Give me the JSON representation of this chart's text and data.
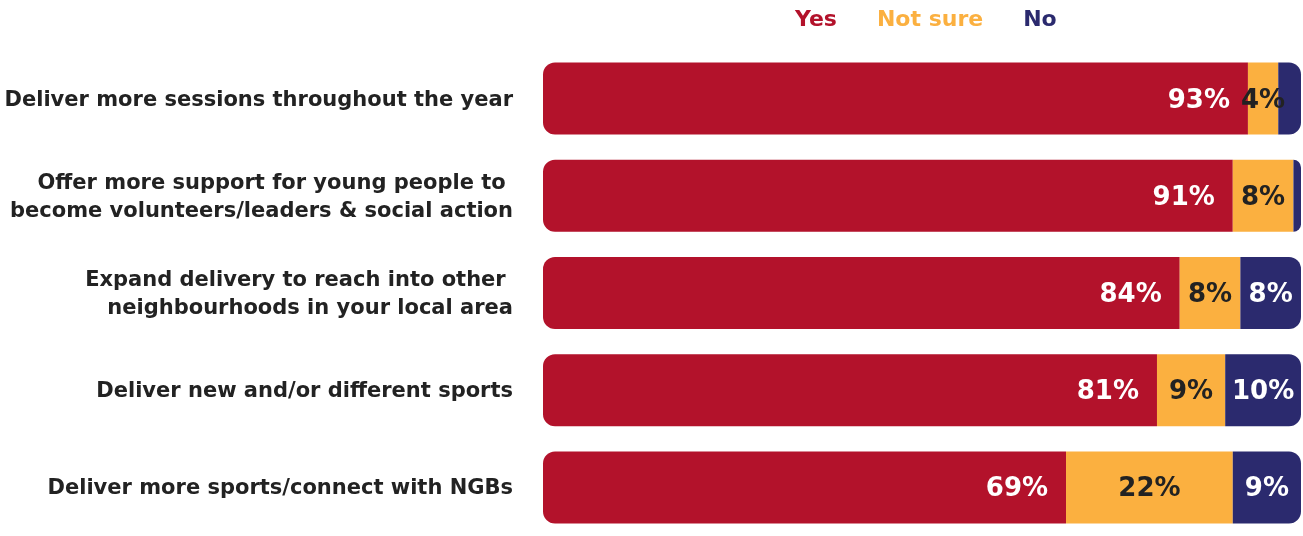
{
  "chart_data": {
    "type": "bar",
    "orientation": "horizontal",
    "stacked": true,
    "legend": "top",
    "categories": [
      "Deliver more sessions throughout the year",
      "Offer more support for young people to become volunteers/leaders & social action",
      "Expand delivery to reach into other neighbourhoods in your local area",
      "Deliver new and/or different sports",
      "Deliver more sports/connect with NGBs"
    ],
    "series": [
      {
        "name": "Yes",
        "color": "#b3122b",
        "values": [
          93,
          91,
          84,
          81,
          69
        ],
        "value_labels": [
          "93%",
          "91%",
          "84%",
          "81%",
          "69%"
        ]
      },
      {
        "name": "Not sure",
        "color": "#fbb040",
        "values": [
          4,
          8,
          8,
          9,
          22
        ],
        "value_labels": [
          "4%",
          "8%",
          "8%",
          "9%",
          "22%"
        ]
      },
      {
        "name": "No",
        "color": "#2b2a6e",
        "values": [
          3,
          1,
          8,
          10,
          9
        ],
        "value_labels": [
          null,
          null,
          "8%",
          "10%",
          "9%"
        ]
      }
    ]
  }
}
